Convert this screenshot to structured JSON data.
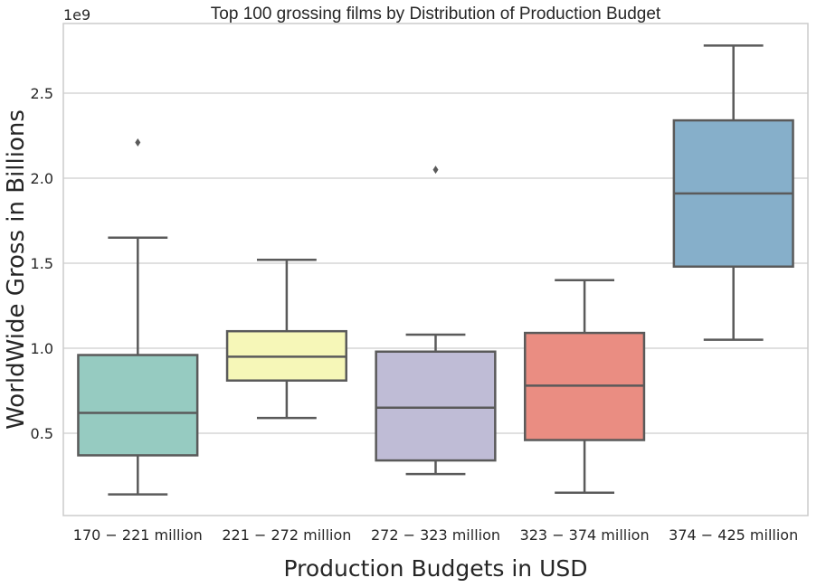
{
  "chart_data": {
    "type": "boxplot",
    "title": "Top 100 grossing films by Distribution of Production Budget",
    "xlabel": "Production Budgets in USD",
    "ylabel": "WorldWide Gross in Billions",
    "y_offset_label": "1e9",
    "ylim": [
      0.02,
      2.9
    ],
    "yticks": [
      0.5,
      1.0,
      1.5,
      2.0,
      2.5
    ],
    "ytick_labels": [
      "0.5",
      "1.0",
      "1.5",
      "2.0",
      "2.5"
    ],
    "grid": true,
    "categories": [
      "170 − 221 million",
      "221 − 272 million",
      "272 − 323 million",
      "323 − 374 million",
      "374 − 425 million"
    ],
    "boxes": [
      {
        "whislo": 0.14,
        "q1": 0.37,
        "med": 0.62,
        "q3": 0.96,
        "whishi": 1.65,
        "fliers": [
          2.21
        ],
        "color": "#96cbc1"
      },
      {
        "whislo": 0.59,
        "q1": 0.81,
        "med": 0.95,
        "q3": 1.1,
        "whishi": 1.52,
        "fliers": [],
        "color": "#f6f7b8"
      },
      {
        "whislo": 0.26,
        "q1": 0.34,
        "med": 0.65,
        "q3": 0.98,
        "whishi": 1.08,
        "fliers": [
          2.05
        ],
        "color": "#bfbcd6"
      },
      {
        "whislo": 0.15,
        "q1": 0.46,
        "med": 0.78,
        "q3": 1.09,
        "whishi": 1.4,
        "fliers": [],
        "color": "#ea8d82"
      },
      {
        "whislo": 1.05,
        "q1": 1.48,
        "med": 1.91,
        "q3": 2.34,
        "whishi": 2.78,
        "fliers": [],
        "color": "#86afca"
      }
    ]
  }
}
